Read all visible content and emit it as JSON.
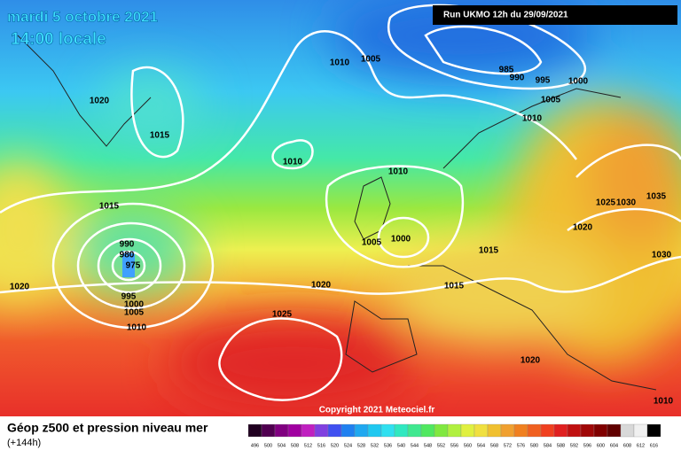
{
  "header": {
    "date": "mardi 5 octobre 2021",
    "time": "14:00 locale",
    "run": "Run UKMO 12h du 29/09/2021"
  },
  "isobar_labels": [
    1010,
    1005,
    985,
    990,
    995,
    1000,
    1005,
    1010,
    1020,
    1015,
    1010,
    1010,
    1015,
    990,
    980,
    975,
    995,
    1000,
    1005,
    1010,
    1020,
    1020,
    1025,
    1000,
    1005,
    1015,
    1015,
    1025,
    1030,
    1035,
    1020,
    1030,
    1020,
    1010
  ],
  "footer": {
    "copyright": "Copyright 2021 Meteociel.fr",
    "title": "Géop z500 et pression niveau mer",
    "lead": "(+144h)"
  },
  "scale": {
    "labels": [
      496,
      500,
      504,
      508,
      512,
      516,
      520,
      524,
      528,
      532,
      536,
      540,
      544,
      548,
      552,
      556,
      560,
      564,
      568,
      572,
      576,
      580,
      584,
      588,
      592,
      596,
      600,
      604,
      608,
      612,
      616
    ]
  }
}
